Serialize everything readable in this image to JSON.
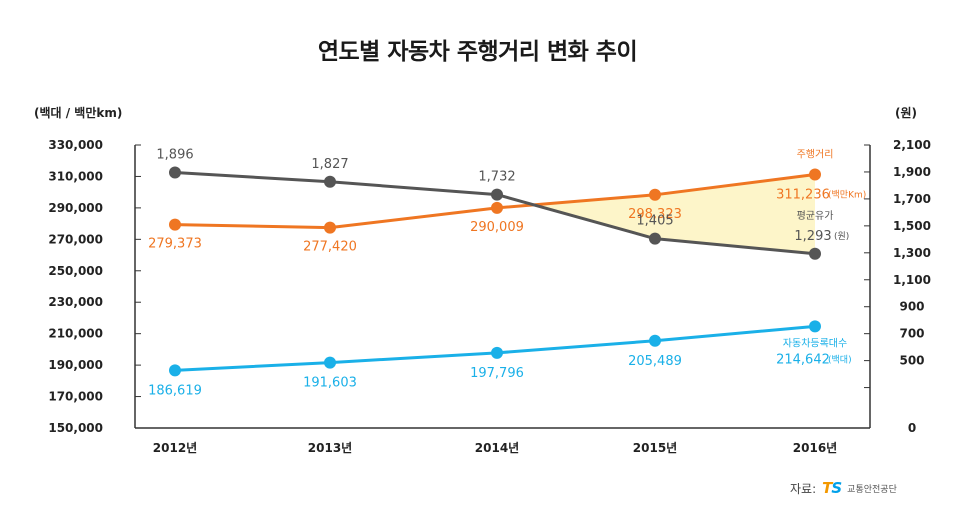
{
  "chart_data": {
    "type": "line",
    "title": "연도별 자동차 주행거리 변화 추이",
    "left_unit": "(백대 / 백만km)",
    "right_unit": "(원)",
    "categories": [
      "2012년",
      "2013년",
      "2014년",
      "2015년",
      "2016년"
    ],
    "y_left": {
      "range": [
        150000,
        330000
      ],
      "ticks": [
        150000,
        170000,
        190000,
        210000,
        230000,
        250000,
        270000,
        290000,
        310000,
        330000
      ],
      "tick_labels": [
        "150,000",
        "170,000",
        "190,000",
        "210,000",
        "230,000",
        "250,000",
        "270,000",
        "290,000",
        "310,000",
        "330,000"
      ]
    },
    "y_right": {
      "range": [
        0,
        2100
      ],
      "ticks": [
        0,
        300,
        500,
        700,
        900,
        1100,
        1300,
        1500,
        1700,
        1900,
        2100
      ],
      "tick_labels": [
        "0",
        "",
        "500",
        "700",
        "900",
        "1,100",
        "1,300",
        "1,500",
        "1,700",
        "1,900",
        "2,100"
      ]
    },
    "series": [
      {
        "name": "주행거리",
        "axis": "left",
        "color": "#ef7622",
        "values": [
          279373,
          277420,
          290009,
          298323,
          311236
        ],
        "labels": [
          "279,373",
          "277,420",
          "290,009",
          "298,323",
          "311,236"
        ],
        "end_name": "주행거리",
        "end_unit": "(백만Km)"
      },
      {
        "name": "평균유가",
        "axis": "right",
        "color": "#555555",
        "values": [
          1896,
          1827,
          1732,
          1405,
          1293
        ],
        "labels": [
          "1,896",
          "1,827",
          "1,732",
          "1,405",
          "1,293"
        ],
        "end_name": "평균유가",
        "end_unit": "(원)"
      },
      {
        "name": "자동차등록대수",
        "axis": "left",
        "color": "#1ab0e8",
        "values": [
          186619,
          191603,
          197796,
          205489,
          214642
        ],
        "labels": [
          "186,619",
          "191,603",
          "197,796",
          "205,489",
          "214,642"
        ],
        "end_name": "자동차등록대수",
        "end_unit": "(백대)"
      }
    ],
    "highlight_fill": "#fdf5c9"
  },
  "source": {
    "label": "자료:",
    "logo_t": "T",
    "logo_s": "S",
    "org": "교통안전공단"
  }
}
